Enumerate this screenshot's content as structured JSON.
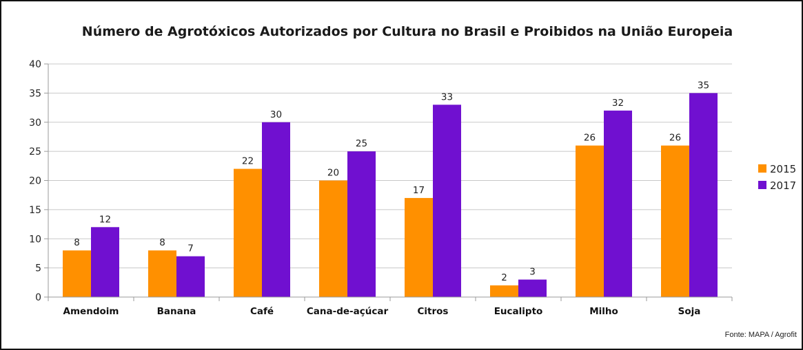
{
  "chart_data": {
    "type": "bar",
    "title": "Número de Agrotóxicos Autorizados por Cultura no Brasil e Proibidos na União Europeia",
    "categories": [
      "Amendoim",
      "Banana",
      "Café",
      "Cana-de-açúcar",
      "Citros",
      "Eucalipto",
      "Milho",
      "Soja"
    ],
    "series": [
      {
        "name": "2015",
        "color": "#ff9000",
        "values": [
          8,
          8,
          22,
          20,
          17,
          2,
          26,
          26
        ]
      },
      {
        "name": "2017",
        "color": "#7010d0",
        "values": [
          12,
          7,
          30,
          25,
          33,
          3,
          32,
          35
        ]
      }
    ],
    "ylim": [
      0,
      40
    ],
    "yticks": [
      0,
      5,
      10,
      15,
      20,
      25,
      30,
      35,
      40
    ],
    "grid": true,
    "legend": "right",
    "source": "Fonte: MAPA / Agrofit"
  }
}
